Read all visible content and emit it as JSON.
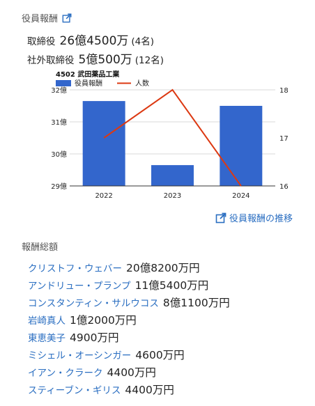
{
  "executive_pay": {
    "title": "役員報酬",
    "directors": {
      "label": "取締役",
      "amount": "26億4500万",
      "count": "(4名)"
    },
    "outside_directors": {
      "label": "社外取締役",
      "amount": "5億500万",
      "count": "(12名)"
    }
  },
  "chart_data": {
    "type": "bar+line",
    "title": "4502 武田薬品工業",
    "categories": [
      "2022",
      "2023",
      "2024"
    ],
    "bars": {
      "name": "役員報酬",
      "values": [
        31.65,
        29.65,
        31.5
      ],
      "color": "#3366cc"
    },
    "line": {
      "name": "人数",
      "values": [
        17,
        18,
        16
      ],
      "color": "#dc3912"
    },
    "y_left": {
      "ticks": [
        "32億",
        "31億",
        "30億",
        "29億"
      ],
      "tick_values": [
        32,
        31,
        30,
        29
      ],
      "range": [
        29,
        32
      ]
    },
    "y_right": {
      "ticks": [
        "18",
        "17",
        "16"
      ],
      "tick_values": [
        18,
        17,
        16
      ],
      "range": [
        16,
        18
      ]
    },
    "legend": "top-left",
    "grid": true
  },
  "history_link": {
    "label": "役員報酬の推移"
  },
  "total_pay": {
    "title": "報酬総額",
    "people": [
      {
        "name": "クリストフ・ウェバー",
        "amount": "20億8200万円"
      },
      {
        "name": "アンドリュー・プランプ",
        "amount": "11億5400万円"
      },
      {
        "name": "コンスタンティン・サルウコス",
        "amount": "8億1100万円"
      },
      {
        "name": "岩崎真人",
        "amount": "1億2000万円"
      },
      {
        "name": "東恵美子",
        "amount": "4900万円"
      },
      {
        "name": "ミシェル・オーシンガー",
        "amount": "4600万円"
      },
      {
        "name": "イアン・クラーク",
        "amount": "4400万円"
      },
      {
        "name": "スティーブン・ギリス",
        "amount": "4400万円"
      }
    ]
  },
  "colors": {
    "link": "#2a6ec1",
    "bar": "#3366cc",
    "line": "#dc3912"
  },
  "icons": {
    "external": "external-link-icon"
  }
}
